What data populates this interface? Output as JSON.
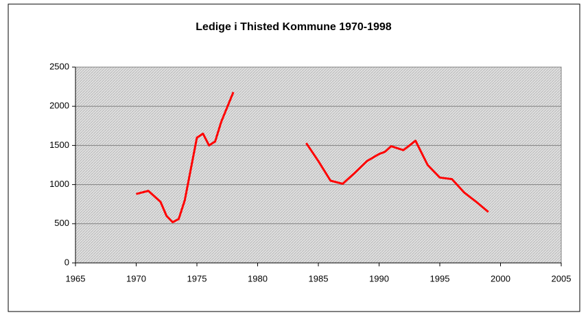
{
  "chart_data": {
    "type": "line",
    "title": "Ledige i Thisted Kommune 1970-1998",
    "x": [
      1970,
      1971,
      1972,
      1972.5,
      1973,
      1973.5,
      1974,
      1974.5,
      1975,
      1975.5,
      1976,
      1976.5,
      1977,
      1978,
      1981,
      1984,
      1985,
      1986,
      1987,
      1988,
      1989,
      1990,
      1990.5,
      1991,
      1992,
      1993,
      1994,
      1995,
      1996,
      1997,
      1998,
      1999
    ],
    "series": [
      {
        "name": "Ledige",
        "color": "#ff0000",
        "values": [
          880,
          920,
          780,
          600,
          520,
          560,
          800,
          1200,
          1600,
          1650,
          1500,
          1550,
          1800,
          2180,
          null,
          1530,
          1300,
          1050,
          1010,
          1150,
          1300,
          1390,
          1420,
          1490,
          1440,
          1560,
          1250,
          1090,
          1070,
          900,
          780,
          650
        ]
      }
    ],
    "xlim": [
      1965,
      2005
    ],
    "xticks": [
      1965,
      1970,
      1975,
      1980,
      1985,
      1990,
      1995,
      2000,
      2005
    ],
    "ylim": [
      0,
      2500
    ],
    "yticks": [
      0,
      500,
      1000,
      1500,
      2000,
      2500
    ],
    "grid": true
  }
}
